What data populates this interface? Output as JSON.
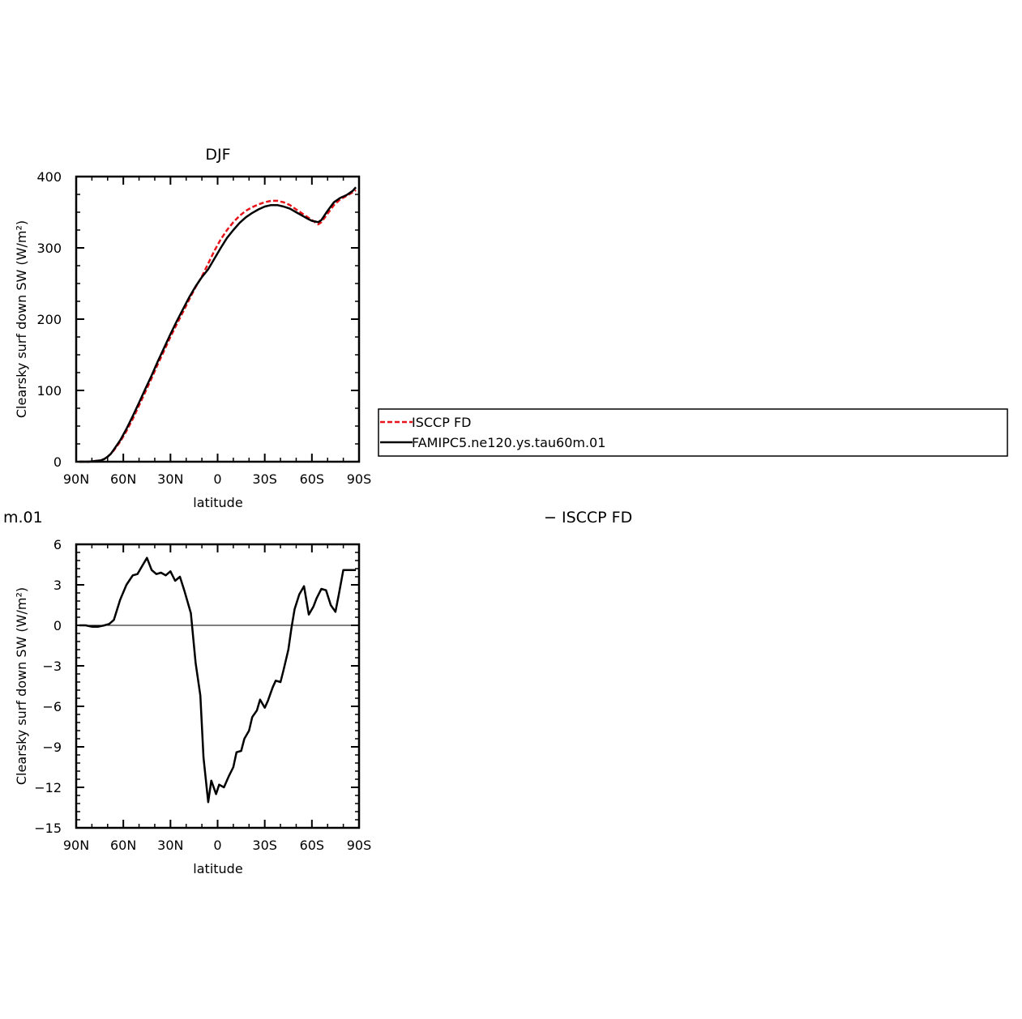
{
  "chart_data": [
    {
      "type": "line",
      "title": "DJF",
      "xlabel": "latitude",
      "ylabel": "Clearsky surf down SW (W/m²)",
      "xlim": [
        90,
        -90
      ],
      "ylim": [
        0,
        400
      ],
      "x_ticks": [
        90,
        60,
        30,
        0,
        -30,
        -60,
        -90
      ],
      "x_tick_labels": [
        "90N",
        "60N",
        "30N",
        "0",
        "30S",
        "60S",
        "90S"
      ],
      "y_ticks": [
        0,
        100,
        200,
        300,
        400
      ],
      "y_tick_labels": [
        "0",
        "100",
        "200",
        "300",
        "400"
      ],
      "legend": "right",
      "series": [
        {
          "name": "ISCCP FD",
          "color": "#e8141a",
          "dash": "dashed",
          "x": [
            88,
            82,
            78,
            74,
            72,
            70,
            68,
            66,
            62,
            58,
            54,
            50,
            46,
            42,
            38,
            34,
            30,
            26,
            22,
            18,
            14,
            10,
            6,
            2,
            -2,
            -6,
            -10,
            -14,
            -18,
            -22,
            -26,
            -30,
            -34,
            -38,
            -42,
            -46,
            -50,
            -54,
            -58,
            -60,
            -62,
            -64,
            -66,
            -70,
            -74,
            -78,
            -82,
            -86,
            -88
          ],
          "y": [
            0,
            0,
            1,
            2,
            4,
            7,
            11,
            16,
            28,
            43,
            60,
            79,
            98,
            117,
            137,
            156,
            175,
            193,
            210,
            228,
            245,
            260,
            278,
            296,
            312,
            325,
            336,
            345,
            352,
            357,
            361,
            364,
            366,
            366,
            364,
            360,
            354,
            348,
            342,
            339,
            336,
            333,
            336,
            348,
            360,
            368,
            373,
            378,
            381
          ]
        },
        {
          "name": "FAMIPC5.ne120.ys.tau60m.01",
          "color": "#000000",
          "dash": "solid",
          "x": [
            88,
            82,
            78,
            74,
            72,
            70,
            68,
            66,
            62,
            58,
            54,
            50,
            46,
            42,
            38,
            34,
            30,
            26,
            22,
            18,
            14,
            10,
            6,
            2,
            -2,
            -6,
            -10,
            -14,
            -18,
            -22,
            -26,
            -30,
            -34,
            -38,
            -42,
            -46,
            -50,
            -54,
            -58,
            -60,
            -62,
            -64,
            -66,
            -70,
            -74,
            -78,
            -82,
            -86,
            -88
          ],
          "y": [
            0,
            0,
            1,
            2,
            4,
            7,
            11,
            17,
            30,
            46,
            64,
            83,
            102,
            121,
            141,
            160,
            179,
            197,
            214,
            231,
            246,
            259,
            270,
            285,
            300,
            314,
            325,
            335,
            343,
            349,
            354,
            358,
            360,
            360,
            358,
            355,
            350,
            345,
            340,
            338,
            337,
            336,
            339,
            352,
            364,
            370,
            374,
            380,
            385
          ]
        }
      ]
    },
    {
      "type": "line",
      "title": "",
      "xlabel": "latitude",
      "ylabel": "Clearsky surf down SW (W/m²)",
      "xlim": [
        90,
        -90
      ],
      "ylim": [
        -15,
        6
      ],
      "x_ticks": [
        90,
        60,
        30,
        0,
        -30,
        -60,
        -90
      ],
      "x_tick_labels": [
        "90N",
        "60N",
        "30N",
        "0",
        "30S",
        "60S",
        "90S"
      ],
      "y_ticks": [
        -15,
        -12,
        -9,
        -6,
        -3,
        0,
        3,
        6
      ],
      "y_tick_labels": [
        "−15",
        "−12",
        "−9",
        "−6",
        "−3",
        "0",
        "3",
        "6"
      ],
      "series": [
        {
          "color": "#000000",
          "dash": "solid",
          "x": [
            88,
            84,
            80,
            76,
            72,
            69,
            66,
            62,
            58,
            54,
            51,
            48,
            45,
            42,
            39,
            36,
            33,
            30,
            27,
            24,
            21,
            17,
            14,
            11,
            9,
            6,
            4,
            1,
            -1,
            -4,
            -7,
            -10,
            -12,
            -15,
            -17,
            -20,
            -22,
            -25,
            -27,
            -30,
            -32,
            -35,
            -37,
            -40,
            -42,
            -45,
            -47,
            -49,
            -52,
            -55,
            -58,
            -61,
            -63,
            -66,
            -69,
            -72,
            -75,
            -77,
            -80,
            -83,
            -86,
            -88
          ],
          "y": [
            0,
            0,
            -0.1,
            -0.1,
            0,
            0.1,
            0.4,
            1.9,
            3.0,
            3.7,
            3.8,
            4.4,
            5.0,
            4.1,
            3.8,
            3.9,
            3.7,
            4.0,
            3.3,
            3.6,
            2.5,
            0.9,
            -2.8,
            -5.2,
            -9.8,
            -13.1,
            -11.5,
            -12.5,
            -11.8,
            -12.0,
            -11.2,
            -10.5,
            -9.4,
            -9.3,
            -8.4,
            -7.8,
            -6.8,
            -6.3,
            -5.5,
            -6.1,
            -5.6,
            -4.6,
            -4.1,
            -4.2,
            -3.3,
            -1.8,
            -0.2,
            1.2,
            2.3,
            2.9,
            0.8,
            1.4,
            2.0,
            2.7,
            2.6,
            1.5,
            1.0,
            2.2,
            4.1,
            4.1,
            4.1,
            4.1
          ]
        }
      ]
    }
  ],
  "partial_labels": {
    "left": "m.01",
    "center": "− ISCCP FD"
  }
}
